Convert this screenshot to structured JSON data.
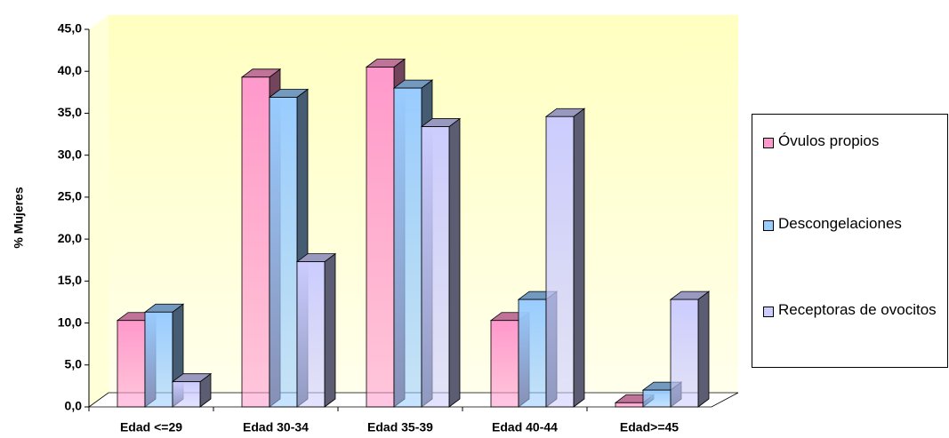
{
  "chart_data": {
    "type": "bar3d",
    "y_label": "% Mujeres",
    "categories": [
      "Edad <=29",
      "Edad 30-34",
      "Edad 35-39",
      "Edad 40-44",
      "Edad>=45"
    ],
    "series": [
      {
        "name": "Óvulos propios",
        "color": "#ff99cc",
        "values": [
          10.3,
          39.3,
          40.5,
          10.3,
          0.5
        ]
      },
      {
        "name": "Descongelaciones",
        "color": "#99ccff",
        "values": [
          11.3,
          36.9,
          38.0,
          12.8,
          2.0
        ]
      },
      {
        "name": "Receptoras de ovocitos",
        "color": "#ccccff",
        "values": [
          3.0,
          17.3,
          33.4,
          34.6,
          12.8
        ]
      }
    ],
    "ylim": [
      0,
      45
    ],
    "yticks": [
      {
        "value": 0,
        "label": "0,0"
      },
      {
        "value": 5,
        "label": "5,0"
      },
      {
        "value": 10,
        "label": "10,0"
      },
      {
        "value": 15,
        "label": "15,0"
      },
      {
        "value": 20,
        "label": "20,0"
      },
      {
        "value": 25,
        "label": "25,0"
      },
      {
        "value": 30,
        "label": "30,0"
      },
      {
        "value": 35,
        "label": "35,0"
      },
      {
        "value": 40,
        "label": "40,0"
      },
      {
        "value": 45,
        "label": "45,0"
      }
    ]
  }
}
